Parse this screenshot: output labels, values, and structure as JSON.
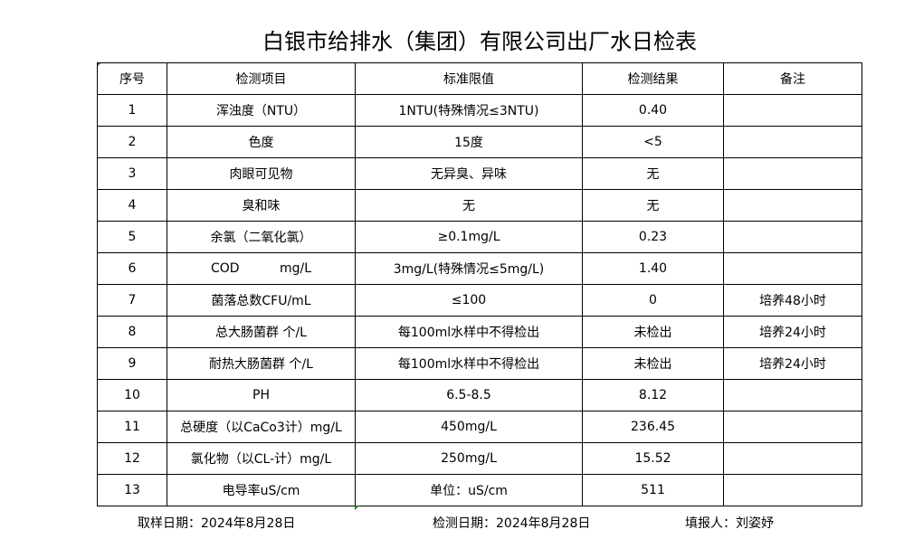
{
  "title": "白银市给排水（集团）有限公司出厂水日检表",
  "headers": [
    "序号",
    "检测项目",
    "标准限值",
    "检测结果",
    "备注"
  ],
  "rows": [
    [
      "1",
      "浑浊度（NTU）",
      "1NTU(特殊情况≤3NTU)",
      "0.40",
      ""
    ],
    [
      "2",
      "色度",
      "15度",
      "<5",
      ""
    ],
    [
      "3",
      "肉眼可见物",
      "无异臭、异味",
      "无",
      ""
    ],
    [
      "4",
      "臭和味",
      "无",
      "无",
      ""
    ],
    [
      "5",
      "余氯（二氧化氯）",
      "≥0.1mg/L",
      "0.23",
      ""
    ],
    [
      "6",
      "COD          mg/L",
      "3mg/L(特殊情况≤5mg/L)",
      "1.40",
      ""
    ],
    [
      "7",
      "菌落总数CFU/mL",
      "≤100",
      "0",
      "培养48小时"
    ],
    [
      "8",
      "总大肠菌群 个/L",
      "每100ml水样中不得检出",
      "未检出",
      "培养24小时"
    ],
    [
      "9",
      "耐热大肠菌群 个/L",
      "每100ml水样中不得检出",
      "未检出",
      "培养24小时"
    ],
    [
      "10",
      "PH",
      "6.5-8.5",
      "8.12",
      ""
    ],
    [
      "11",
      "总硬度（以CaCo3计）mg/L",
      "450mg/L",
      "236.45",
      ""
    ],
    [
      "12",
      "氯化物（以CL-计）mg/L",
      "250mg/L",
      "15.52",
      ""
    ],
    [
      "13",
      "电导率uS/cm",
      "单位：uS/cm",
      "511",
      ""
    ]
  ],
  "footer": {
    "sample_date": "取样日期：2024年8月28日",
    "test_date": "检测日期：2024年8月28日",
    "reporter": "填报人：刘姿妤"
  }
}
